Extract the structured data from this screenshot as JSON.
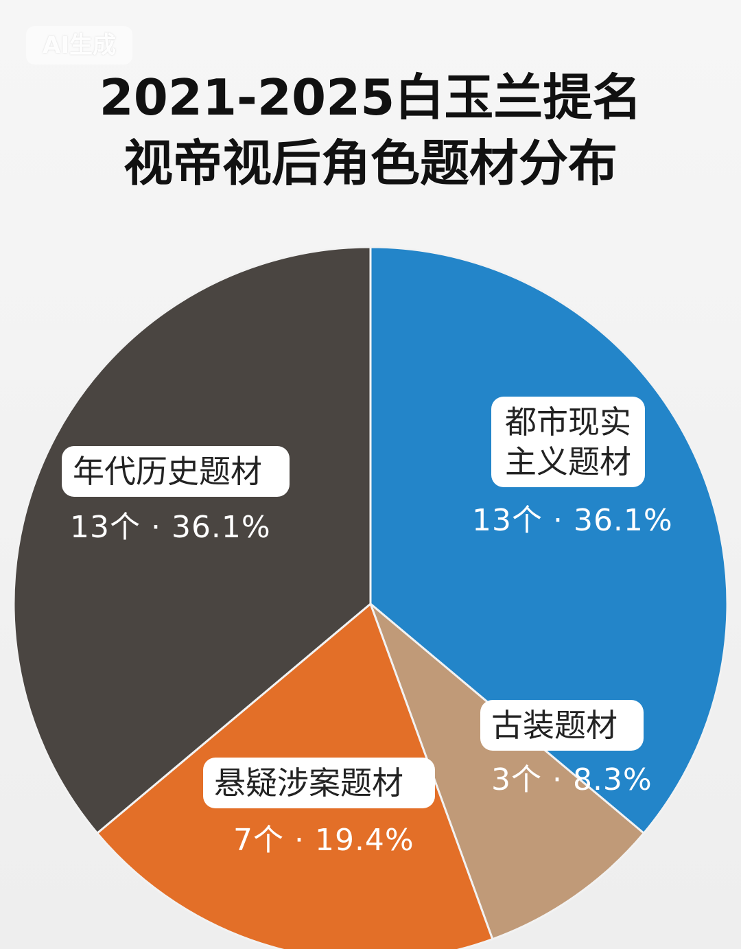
{
  "watermark": "AI生成",
  "chart_data": {
    "type": "pie",
    "title_line1": "2021-2025白玉兰提名",
    "title_line2": "视帝视后角色题材分布",
    "slices": [
      {
        "label": "都市现实主义题材",
        "label_lines": [
          "都市现实",
          "主义题材"
        ],
        "value_text": "13个 · 36.1%",
        "count": 13,
        "percent": 36.1,
        "color": "#2385c9"
      },
      {
        "label": "古装题材",
        "label_lines": [
          "古装题材"
        ],
        "value_text": "3个 · 8.3%",
        "count": 3,
        "percent": 8.3,
        "color": "#c09a78"
      },
      {
        "label": "悬疑涉案题材",
        "label_lines": [
          "悬疑涉案题材"
        ],
        "value_text": "7个 · 19.4%",
        "count": 7,
        "percent": 19.4,
        "color": "#e36f28"
      },
      {
        "label": "年代历史题材",
        "label_lines": [
          "年代历史题材"
        ],
        "value_text": "13个 · 36.1%",
        "count": 13,
        "percent": 36.1,
        "color": "#4a4541"
      }
    ]
  }
}
